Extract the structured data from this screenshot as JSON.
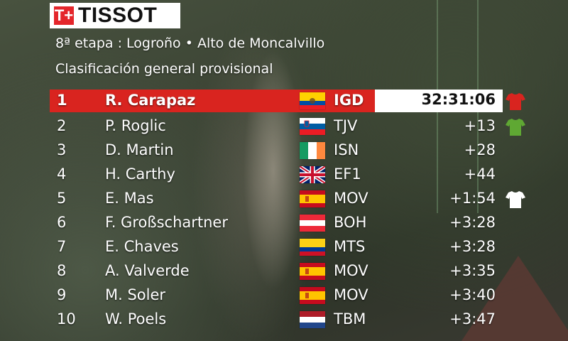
{
  "brand": {
    "mark": "T+",
    "name": "TISSOT"
  },
  "header": {
    "stage": "8ª etapa : Logroño • Alto de Moncalvillo",
    "subtitle": "Clasificación general provisional"
  },
  "colors": {
    "leader_bar": "#d9241f",
    "red_jersey": "#d9241f",
    "green_jersey": "#5fa833",
    "white_jersey": "#ffffff"
  },
  "rows": [
    {
      "pos": "1",
      "name": "R. Carapaz",
      "flag": "ecuador",
      "team": "IGD",
      "time": "32:31:06",
      "jersey": "red-jersey-icon"
    },
    {
      "pos": "2",
      "name": "P. Roglic",
      "flag": "slovenia",
      "team": "TJV",
      "time": "+13",
      "jersey": "green-jersey-icon"
    },
    {
      "pos": "3",
      "name": "D. Martin",
      "flag": "ireland",
      "team": "ISN",
      "time": "+28"
    },
    {
      "pos": "4",
      "name": "H. Carthy",
      "flag": "united-kingdom",
      "team": "EF1",
      "time": "+44"
    },
    {
      "pos": "5",
      "name": "E. Mas",
      "flag": "spain",
      "team": "MOV",
      "time": "+1:54",
      "jersey": "white-jersey-icon"
    },
    {
      "pos": "6",
      "name": "F. Großschartner",
      "flag": "austria",
      "team": "BOH",
      "time": "+3:28"
    },
    {
      "pos": "7",
      "name": "E. Chaves",
      "flag": "colombia",
      "team": "MTS",
      "time": "+3:28"
    },
    {
      "pos": "8",
      "name": "A. Valverde",
      "flag": "spain",
      "team": "MOV",
      "time": "+3:35"
    },
    {
      "pos": "9",
      "name": "M. Soler",
      "flag": "spain",
      "team": "MOV",
      "time": "+3:40"
    },
    {
      "pos": "10",
      "name": "W. Poels",
      "flag": "netherlands",
      "team": "TBM",
      "time": "+3:47"
    }
  ]
}
